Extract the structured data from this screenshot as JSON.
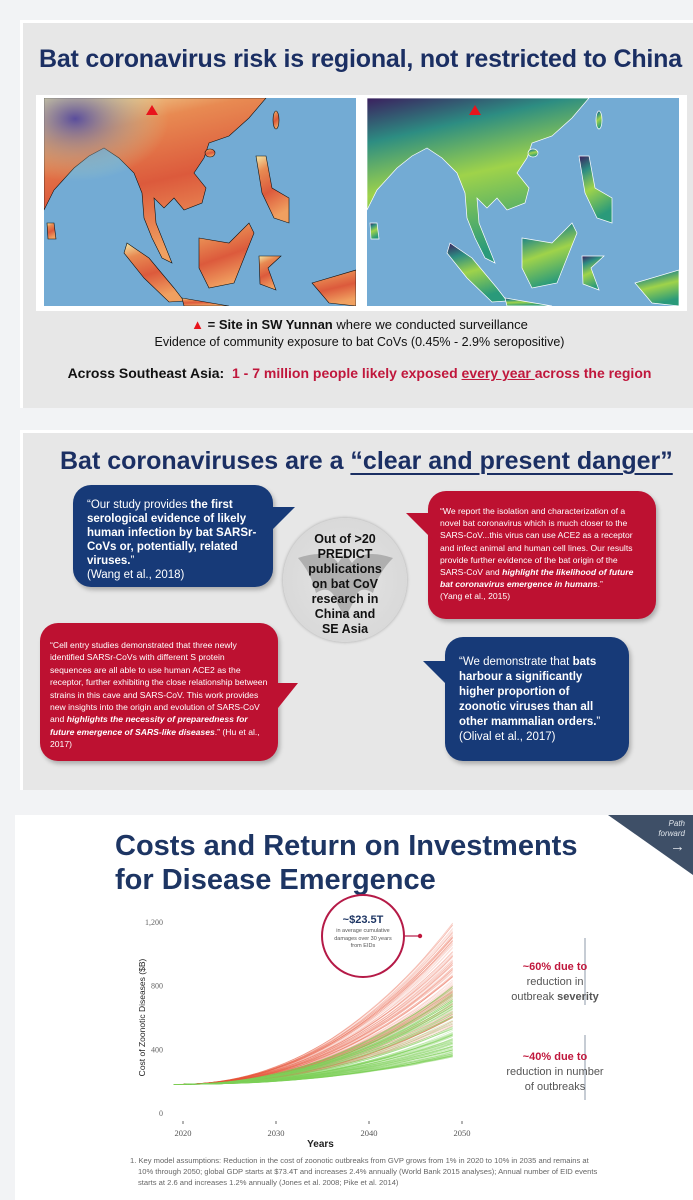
{
  "slide1": {
    "title": "Bat coronavirus risk is regional, not restricted to China",
    "legend_marker_color": "#e8141c",
    "legend_prefix": "= Site in ",
    "legend_bold": "SW Yunnan",
    "legend_suffix": " where we conducted surveillance",
    "evidence": "Evidence of community exposure to bat CoVs (0.45% - 2.9% seropositive)",
    "across_label": "Across Southeast Asia",
    "across_colon": ":",
    "across_red_1": "1 - 7 million people likely exposed ",
    "across_red_underlined": "every year ",
    "across_red_2": "across the region",
    "map_left_palette": "red-yellow-blue",
    "map_right_palette": "viridis"
  },
  "slide2": {
    "title_plain": "Bat coronaviruses are a ",
    "title_underlined": "“clear and present danger”",
    "center_text": [
      "Out of >20",
      "PREDICT",
      "publications",
      "on bat CoV",
      "research in",
      "China and",
      "SE Asia"
    ],
    "quotes": [
      {
        "pre": "“Our study provides ",
        "bold": "the first serological evidence of likely human infection by bat SARSr-CoVs or, potentially, related viruses.",
        "post": "”",
        "cite": "(Wang et al., 2018)"
      },
      {
        "pre": "“We report the isolation and characterization of a novel bat coronavirus which is much closer to the SARS-CoV...this virus can use ACE2 as a receptor and infect animal and human cell lines. Our results provide further evidence of the bat origin of the SARS-CoV and ",
        "bold": "highlight the likelihood of future bat coronavirus emergence in humans",
        "post": ".”",
        "cite": "(Yang et al., 2015)"
      },
      {
        "pre": "“Cell entry studies demonstrated that three newly identified SARSr-CoVs with different S protein sequences are all able to use human ACE2 as the receptor, further exhibiting the close relationship between strains in this cave and SARS-CoV. This work provides new insights into the origin and evolution of SARS-CoV and ",
        "bold": "highlights the necessity of preparedness for future emergence of SARS-like diseases",
        "post": ".” (Hu et al., 2017)",
        "cite": ""
      },
      {
        "pre": "“We demonstrate that ",
        "bold": "bats harbour a significantly higher proportion of zoonotic viruses than all other mammalian orders.",
        "post": "”",
        "cite": "(Olival et al., 2017)"
      }
    ]
  },
  "slide3": {
    "title_line1": "Costs and Return on Investments",
    "title_line2": "for Disease Emergence",
    "corner_label_1": "Path",
    "corner_label_2": "forward",
    "corner_arrow": "→",
    "callout_value": "~$23.5T",
    "callout_text": "in average cumulative damages over 30 years from EIDs",
    "ann1_red": "~60% due to",
    "ann1_text": "reduction in outbreak ",
    "ann1_bold": "severity",
    "ann2_red": "~40% due to",
    "ann2_text": "reduction in number of outbreaks",
    "footnote": "1.  Key model assumptions: Reduction in the cost of zoonotic outbreaks from GVP grows from 1% in 2020 to 10% in 2035 and remains at 10% through 2050; global GDP starts at $73.4T and increases 2.4% annually (World Bank 2015 analyses); Annual number of EID events starts at 2.6 and increases 1.2% annually (Jones et al. 2008; Pike et al. 2014)"
  },
  "chart_data": {
    "type": "line",
    "title": "",
    "xlabel": "Years",
    "ylabel": "Cost of Zoonotic Diseases ($B)",
    "x_ticks": [
      "2020",
      "2030",
      "2040",
      "2050"
    ],
    "y_ticks": [
      "0",
      "400",
      "800",
      "1,200"
    ],
    "xlim": [
      2018,
      2051
    ],
    "ylim": [
      0,
      1200
    ],
    "grid": false,
    "bands": [
      {
        "color": "#e8553a",
        "start_year": 2019,
        "end_year": 2049,
        "start_value": 180,
        "end_low": 550,
        "end_high": 1200
      },
      {
        "color": "#7fd15a",
        "start_year": 2019,
        "end_year": 2049,
        "start_value": 180,
        "end_low": 350,
        "end_high": 800
      }
    ]
  }
}
